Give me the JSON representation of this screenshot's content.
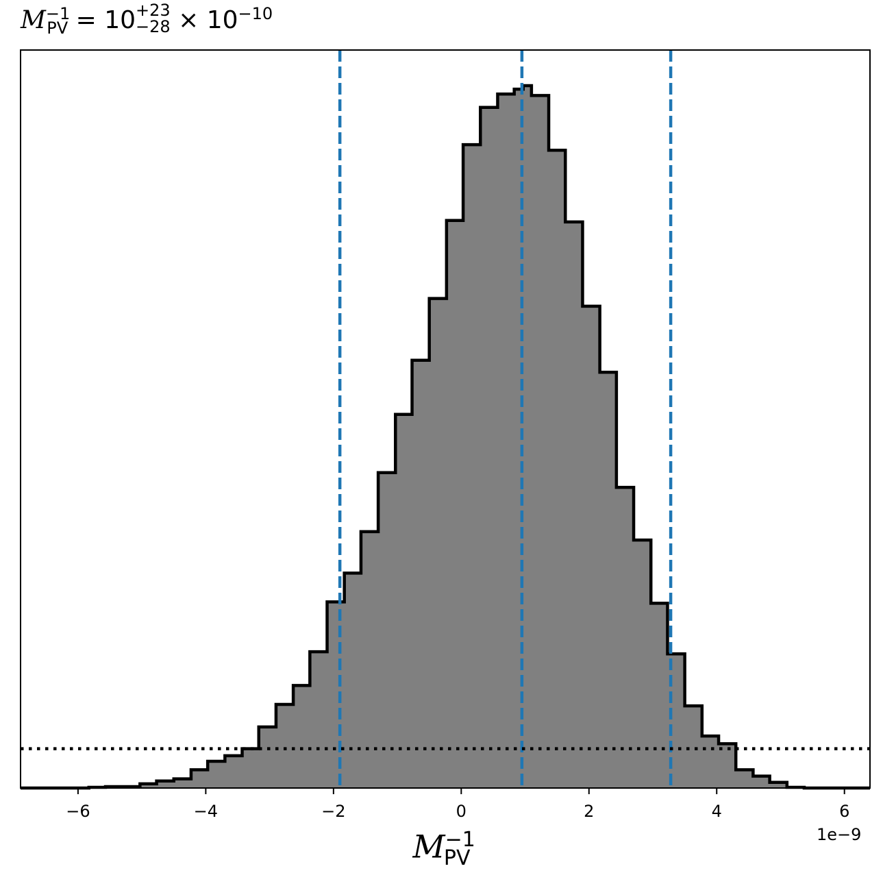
{
  "title": {
    "base": "M",
    "sub": "PV",
    "sup": "−1",
    "eq": " = 10",
    "err_plus": "+23",
    "err_minus": "−28",
    "times": " × 10",
    "exp": "−10"
  },
  "xlabel": {
    "base": "M",
    "sub": "PV",
    "sup": "−1"
  },
  "offset_text": "1e−9",
  "chart_data": {
    "type": "histogram",
    "xlim": [
      -6.9e-09,
      6.4e-09
    ],
    "ylim": [
      0,
      1.0
    ],
    "xticks": [
      -6e-09,
      -4e-09,
      -2e-09,
      0,
      2e-09,
      4e-09,
      6e-09
    ],
    "xtick_labels": [
      "−6",
      "−4",
      "−2",
      "0",
      "2",
      "4",
      "6"
    ],
    "x_scale_note": "1e−9",
    "bin_edges": [
      -6.9e-09,
      -6.63e-09,
      -6.37e-09,
      -6.1e-09,
      -5.83e-09,
      -5.57e-09,
      -5.3e-09,
      -5.03e-09,
      -4.77e-09,
      -4.5e-09,
      -4.23e-09,
      -3.97e-09,
      -3.7e-09,
      -3.43e-09,
      -3.17e-09,
      -2.9e-09,
      -2.63e-09,
      -2.37e-09,
      -2.1e-09,
      -1.83e-09,
      -1.57e-09,
      -1.3e-09,
      -1.03e-09,
      -7.7e-10,
      -5e-10,
      -2.3e-10,
      3e-11,
      3e-10,
      5.7e-10,
      8.3e-10,
      9.7e-10,
      1.1e-09,
      1.37e-09,
      1.63e-09,
      1.9e-09,
      2.17e-09,
      2.43e-09,
      2.7e-09,
      2.97e-09,
      3.23e-09,
      3.5e-09,
      3.77e-09,
      4.03e-09,
      4.3e-09,
      4.57e-09,
      4.83e-09,
      5.1e-09,
      5.37e-09,
      5.63e-09,
      5.9e-09,
      6.17e-09,
      6.4e-09
    ],
    "values": [
      0,
      0,
      0,
      0,
      0.001,
      0.002,
      0.002,
      0.006,
      0.01,
      0.013,
      0.026,
      0.038,
      0.046,
      0.056,
      0.087,
      0.119,
      0.146,
      0.194,
      0.265,
      0.306,
      0.365,
      0.449,
      0.532,
      0.609,
      0.697,
      0.808,
      0.916,
      0.969,
      0.988,
      0.995,
      1.0,
      0.986,
      0.908,
      0.806,
      0.686,
      0.592,
      0.428,
      0.353,
      0.263,
      0.191,
      0.117,
      0.074,
      0.063,
      0.026,
      0.017,
      0.008,
      0.001,
      0,
      0,
      0,
      0
    ],
    "fill_color": "#808080",
    "edge_color": "#000000",
    "vlines": [
      -1.9e-09,
      9.5e-10,
      3.28e-09
    ],
    "vline_color": "#1f77b4",
    "vline_style": "dashed",
    "hline": 0.056,
    "hline_style": "dotted",
    "hline_color": "#000000"
  }
}
